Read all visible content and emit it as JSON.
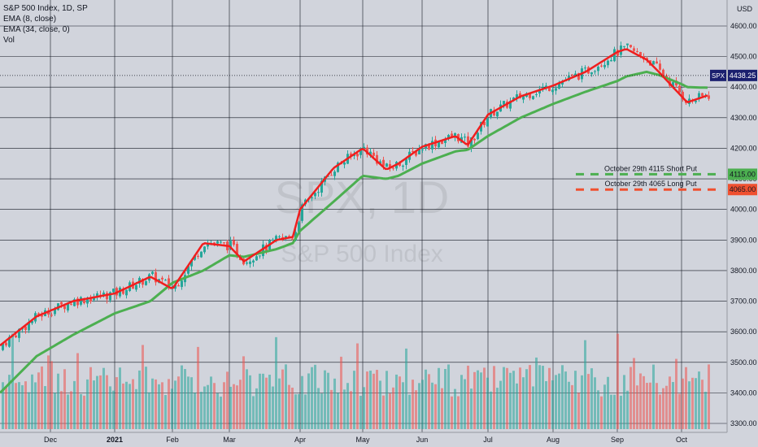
{
  "legend": {
    "title": "S&P 500 Index, 1D, SP",
    "ema8": "EMA (8, close)",
    "ema34": "EMA (34, close, 0)",
    "vol": "Vol"
  },
  "watermark": {
    "symbol": "SPX, 1D",
    "name": "S&P 500 Index"
  },
  "currency": "USD",
  "colors": {
    "background": "#d1d4dc",
    "up": "#26a69a",
    "down": "#ef5350",
    "ema8": "#f01e1e",
    "ema34": "#4caf50",
    "short_put": "#4caf50",
    "long_put": "#f05030",
    "price_badge": "#1a1f6e"
  },
  "chart_data": {
    "type": "line",
    "x": [
      "Nov 20",
      "Dec 1",
      "Dec 15",
      "Jan 4",
      "Jan 15",
      "Feb 1",
      "Feb 15",
      "Mar 1",
      "Mar 4",
      "Mar 15",
      "Mar 24",
      "Apr 1",
      "Apr 15",
      "May 1",
      "May 12",
      "May 20",
      "Jun 1",
      "Jun 15",
      "Jun 18",
      "Jul 1",
      "Jul 15",
      "Aug 1",
      "Aug 15",
      "Sep 1",
      "Sep 3",
      "Sep 15",
      "Sep 20",
      "Oct 1",
      "Oct 4",
      "Oct 15"
    ],
    "series": [
      {
        "name": "EMA (8, close)",
        "values": [
          3555,
          3650,
          3700,
          3725,
          3780,
          3740,
          3890,
          3880,
          3830,
          3900,
          3910,
          4000,
          4135,
          4200,
          4130,
          4150,
          4205,
          4240,
          4210,
          4310,
          4370,
          4405,
          4450,
          4515,
          4525,
          4490,
          4450,
          4370,
          4350,
          4375
        ]
      },
      {
        "name": "EMA (34, close, 0)",
        "values": [
          3400,
          3520,
          3590,
          3660,
          3700,
          3760,
          3800,
          3850,
          3845,
          3870,
          3890,
          3930,
          4025,
          4110,
          4100,
          4110,
          4150,
          4190,
          4195,
          4240,
          4300,
          4345,
          4385,
          4420,
          4435,
          4450,
          4440,
          4410,
          4400,
          4398
        ]
      }
    ],
    "price_label": "SPX",
    "last_price": 4438.25,
    "last_price_label": "4438.25",
    "levels": [
      {
        "label": "October 29th 4115 Short Put",
        "value": 4115,
        "value_label": "4115.00"
      },
      {
        "label": "October 29th 4065 Long Put",
        "value": 4065,
        "value_label": "4065.00"
      }
    ],
    "y_ticks": [
      "4600.00",
      "4500.00",
      "4400.00",
      "4300.00",
      "4200.00",
      "4100.00",
      "4000.00",
      "3900.00",
      "3800.00",
      "3700.00",
      "3600.00",
      "3500.00",
      "3400.00",
      "3300.00"
    ],
    "x_ticks": [
      "Dec",
      "2021",
      "Feb",
      "Mar",
      "Apr",
      "May",
      "Jun",
      "Jul",
      "Aug",
      "Sep",
      "Oct"
    ],
    "ylim": [
      3295,
      4640
    ],
    "grid": true
  }
}
